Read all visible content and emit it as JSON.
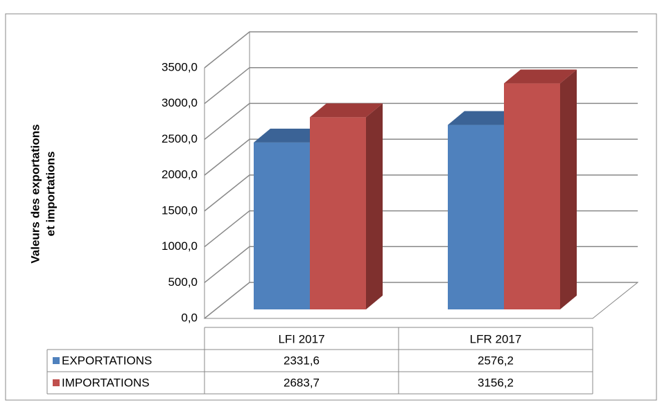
{
  "chart_data": {
    "type": "bar3d",
    "y_label_lines": [
      "Valeurs des exportations",
      "et importations"
    ],
    "categories": [
      "LFI 2017",
      "LFR 2017"
    ],
    "series": [
      {
        "name": "EXPORTATIONS",
        "color": "#4f81bd",
        "side_color": "#385d8a",
        "top_color": "#3b6396",
        "values": [
          2331.6,
          2576.2
        ],
        "value_labels": [
          "2331,6",
          "2576,2"
        ]
      },
      {
        "name": "IMPORTATIONS",
        "color": "#c0504d",
        "side_color": "#7f302e",
        "top_color": "#9e3b39",
        "values": [
          2683.7,
          3156.2
        ],
        "value_labels": [
          "2683,7",
          "3156,2"
        ]
      }
    ],
    "ylim": [
      0,
      3500
    ],
    "yticks": [
      {
        "value": 0,
        "label": "0,0"
      },
      {
        "value": 500,
        "label": "500,0"
      },
      {
        "value": 1000,
        "label": "1000,0"
      },
      {
        "value": 1500,
        "label": "1500,0"
      },
      {
        "value": 2000,
        "label": "2000,0"
      },
      {
        "value": 2500,
        "label": "2500,0"
      },
      {
        "value": 3000,
        "label": "3000,0"
      },
      {
        "value": 3500,
        "label": "3500,0"
      }
    ],
    "grid": true,
    "legend": "table"
  }
}
